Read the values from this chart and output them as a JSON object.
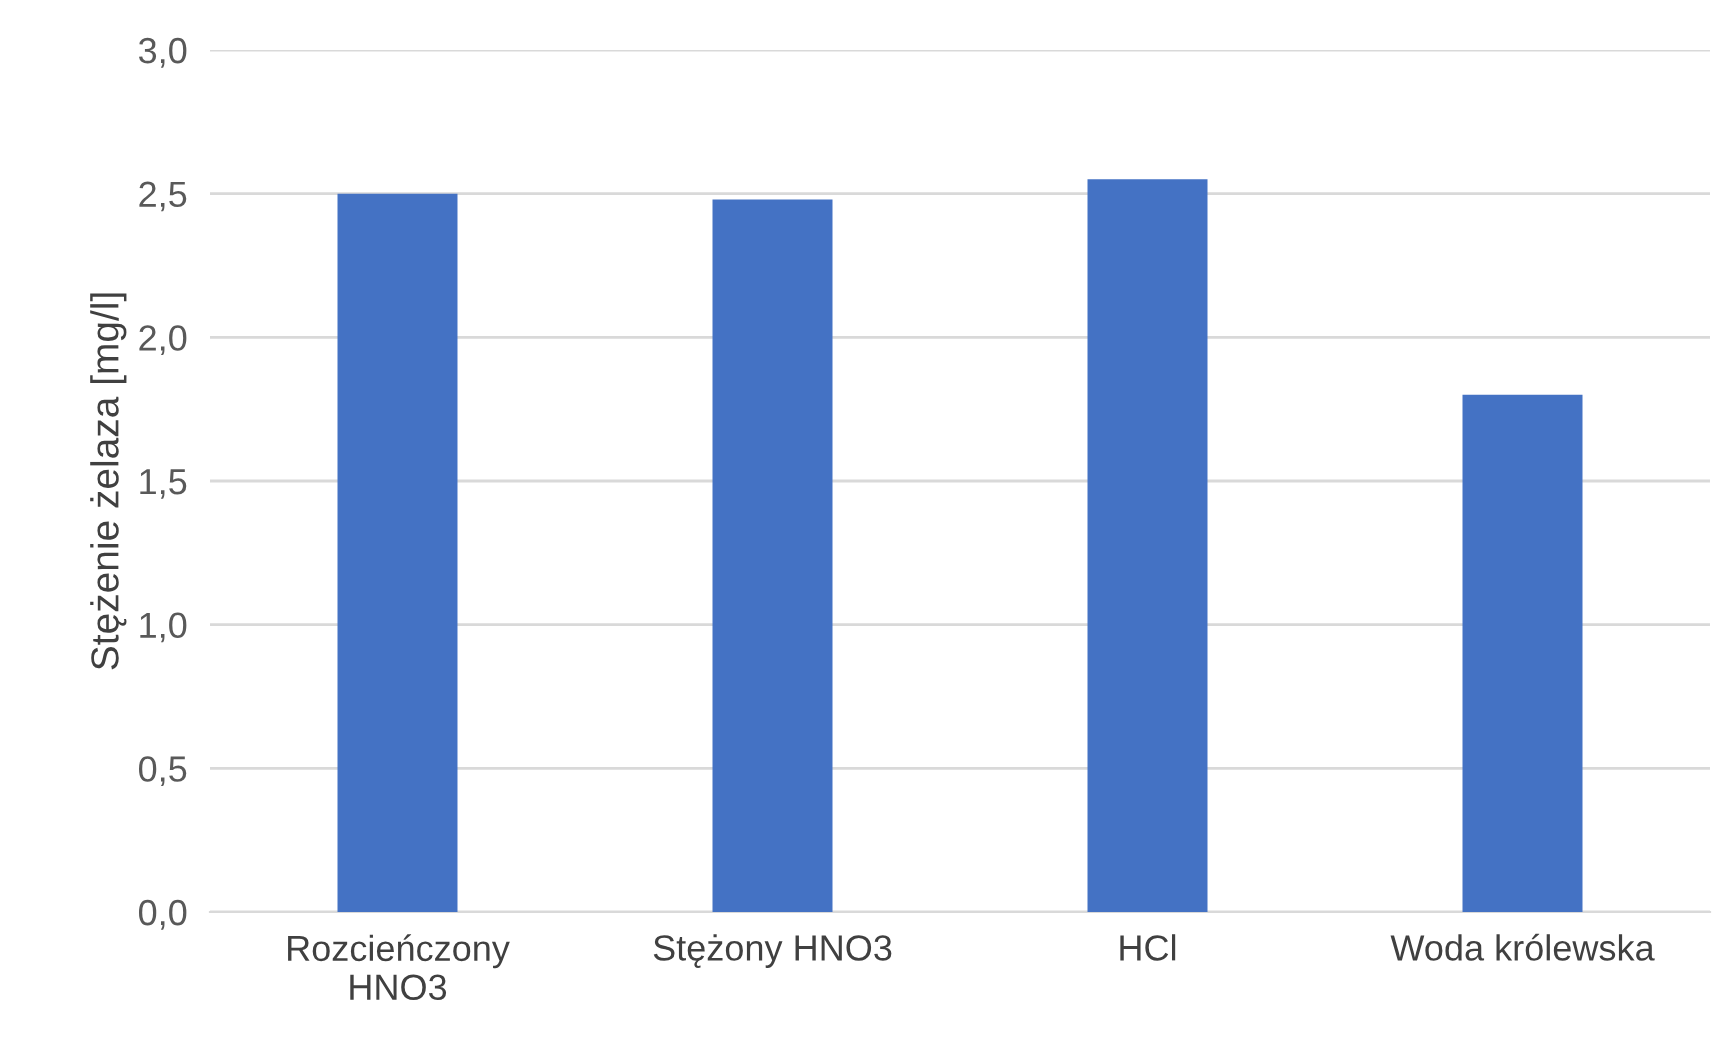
{
  "chart_data": {
    "type": "bar",
    "ylabel": "Stężenie żelaza [mg/l]",
    "categories": [
      "Rozcieńczony\nHNO3",
      "Stężony HNO3",
      "HCl",
      "Woda królewska"
    ],
    "values": [
      2.5,
      2.48,
      2.55,
      1.8
    ],
    "color": "#4472c4",
    "ylim": [
      0,
      3
    ],
    "yticks": [
      {
        "value": 0,
        "label": "0,0"
      },
      {
        "value": 0.5,
        "label": "0,5"
      },
      {
        "value": 1,
        "label": "1,0"
      },
      {
        "value": 1.5,
        "label": "1,5"
      },
      {
        "value": 2,
        "label": "2,0"
      },
      {
        "value": 2.5,
        "label": "2,5"
      },
      {
        "value": 3,
        "label": "3,0"
      }
    ],
    "grid": "y"
  }
}
